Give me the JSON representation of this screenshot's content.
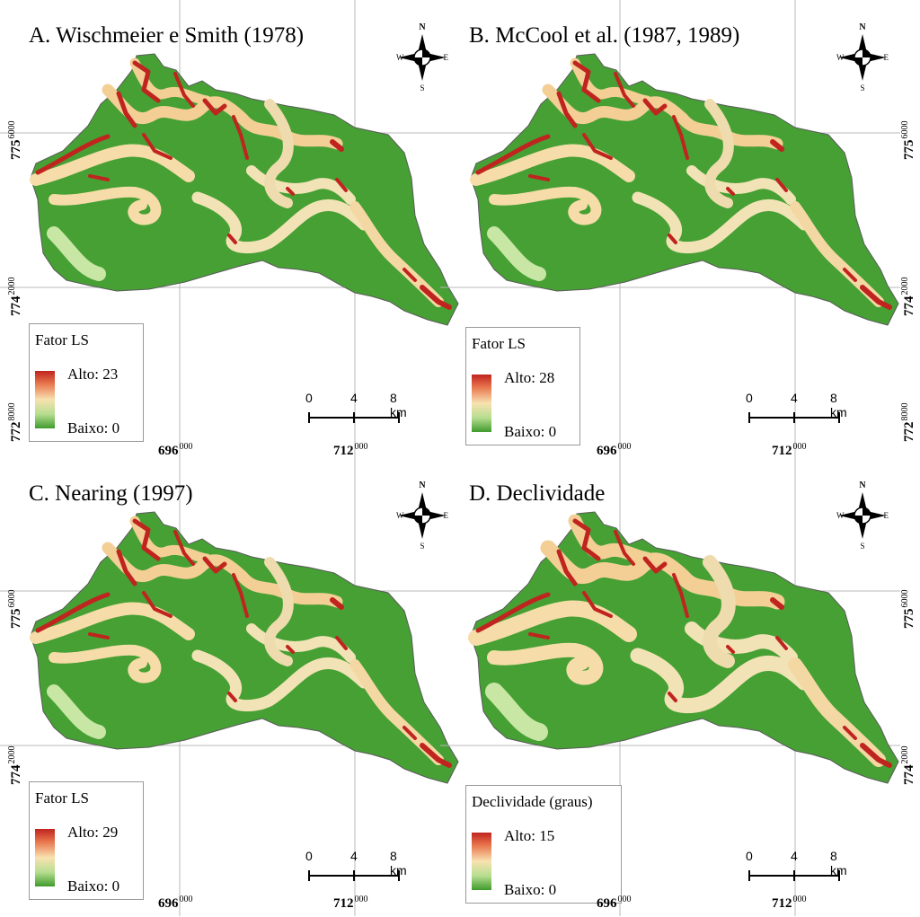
{
  "panels": [
    {
      "id": "a",
      "title": "A. Wischmeier e Smith (1978)",
      "legend_title": "Fator LS",
      "legend_high": "Alto: 23",
      "legend_low": "Baixo: 0"
    },
    {
      "id": "b",
      "title": "B. McCool et al. (1987, 1989)",
      "legend_title": "Fator LS",
      "legend_high": "Alto: 28",
      "legend_low": "Baixo: 0"
    },
    {
      "id": "c",
      "title": "C. Nearing (1997)",
      "legend_title": "Fator LS",
      "legend_high": "Alto: 29",
      "legend_low": "Baixo: 0"
    },
    {
      "id": "d",
      "title": "D. Declividade",
      "legend_title": "Declividade (graus)",
      "legend_high": "Alto: 15",
      "legend_low": "Baixo: 0"
    }
  ],
  "compass": {
    "n": "N",
    "s": "S",
    "e": "E",
    "w": "W"
  },
  "scalebar": {
    "t0": "0",
    "t1": "4",
    "t2": "8 km"
  },
  "grid": {
    "x1_main": "696",
    "x1_sup": "000",
    "x2_main": "712",
    "x2_sup": "000",
    "y1_main": "775",
    "y1_sup": "6000",
    "y2_main": "774",
    "y2_sup": "2000",
    "y3_main": "772",
    "y3_sup": "8000"
  },
  "colors": {
    "basin": "#46a034",
    "high": "#c0241f",
    "mid": "#f8e2b0",
    "low": "#3f9b2d",
    "outline": "#5a5a5a"
  }
}
